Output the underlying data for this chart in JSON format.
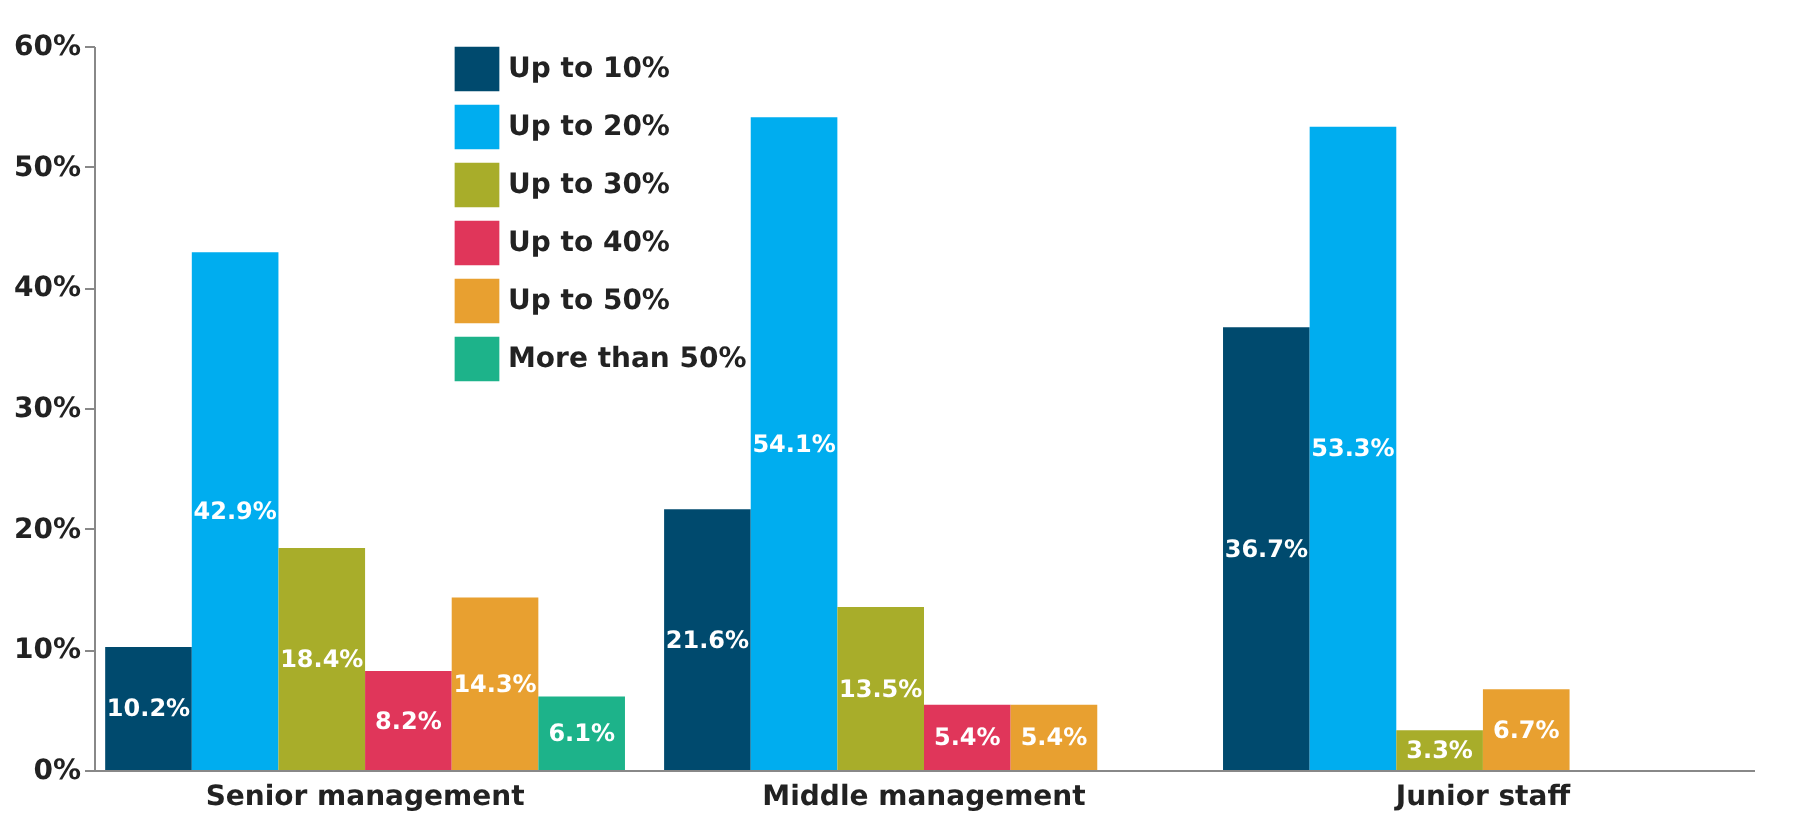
{
  "chart_data": {
    "type": "bar",
    "categories": [
      "Senior management",
      "Middle management",
      "Junior staff"
    ],
    "series": [
      {
        "name": "Up to 10%",
        "color": "#004a6e",
        "values": [
          10.2,
          21.6,
          36.7
        ]
      },
      {
        "name": "Up to 20%",
        "color": "#00adef",
        "values": [
          42.9,
          54.1,
          53.3
        ]
      },
      {
        "name": "Up to 30%",
        "color": "#a8ad2a",
        "values": [
          18.4,
          13.5,
          3.3
        ]
      },
      {
        "name": "Up to 40%",
        "color": "#e0365a",
        "values": [
          8.2,
          5.4,
          null
        ]
      },
      {
        "name": "Up to 50%",
        "color": "#e8a030",
        "values": [
          14.3,
          5.4,
          6.7
        ]
      },
      {
        "name": "More than 50%",
        "color": "#1db38a",
        "values": [
          6.1,
          null,
          null
        ]
      }
    ],
    "ylim": [
      0,
      60
    ],
    "yticks": [
      {
        "value": 0,
        "label": "0%"
      },
      {
        "value": 10,
        "label": "10%"
      },
      {
        "value": 20,
        "label": "20%"
      },
      {
        "value": 30,
        "label": "30%"
      },
      {
        "value": 40,
        "label": "40%"
      },
      {
        "value": 50,
        "label": "50%"
      },
      {
        "value": 60,
        "label": "60%"
      }
    ],
    "value_labels": [
      [
        "10.2%",
        "21.6%",
        "36.7%"
      ],
      [
        "42.9%",
        "54.1%",
        "53.3%"
      ],
      [
        "18.4%",
        "13.5%",
        "3.3%"
      ],
      [
        "8.2%",
        "5.4%",
        null
      ],
      [
        "14.3%",
        "5.4%",
        "6.7%"
      ],
      [
        "6.1%",
        null,
        null
      ]
    ],
    "legend": "top left",
    "grid": false
  }
}
